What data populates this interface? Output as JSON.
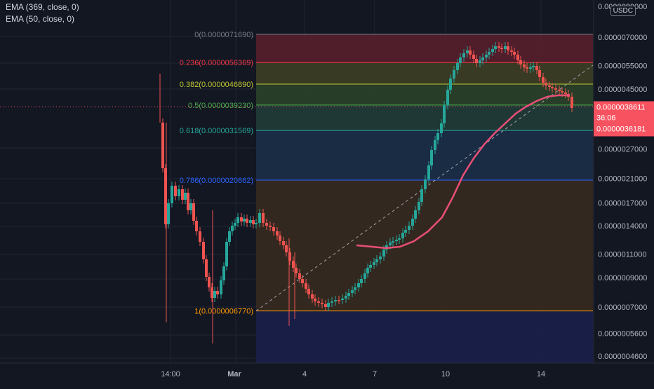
{
  "indicators": [
    {
      "label": "EMA (369, close, 0)"
    },
    {
      "label": "EMA (50, close, 0)"
    }
  ],
  "currency_badge": "USDC",
  "price_axis": {
    "labels": [
      "0.0000070000",
      "0.0000055000",
      "0.0000045000",
      "0.0000027000",
      "0.0000021000",
      "0.0000017000",
      "0.0000014000",
      "0.0000011000",
      "0.0000009000",
      "0.0000007000",
      "0.0000005600",
      "0.0000004600"
    ],
    "top_label": "0.0000080000"
  },
  "time_axis": {
    "labels": [
      "14:00",
      "Mar",
      "4",
      "7",
      "10",
      "14"
    ]
  },
  "price_tag": {
    "price": "0.0000038611",
    "countdown": "36:06",
    "secondary": "0.0000036181",
    "color": "#f7525f"
  },
  "fib_levels": [
    {
      "ratio": "0",
      "price": "0.0000071690",
      "label": "0(0.0000071690)",
      "color": "#787b86"
    },
    {
      "ratio": "0.236",
      "price": "0.0000056369",
      "label": "0.236(0.0000056369)",
      "color": "#f23645"
    },
    {
      "ratio": "0.382",
      "price": "0.0000046890",
      "label": "0.382(0.0000046890)",
      "color": "#c0ca33"
    },
    {
      "ratio": "0.5",
      "price": "0.0000039230",
      "label": "0.5(0.0000039230)",
      "color": "#4caf50"
    },
    {
      "ratio": "0.618",
      "price": "0.0000031569",
      "label": "0.618(0.0000031569)",
      "color": "#26a69a"
    },
    {
      "ratio": "0.786",
      "price": "0.0000020662",
      "label": "0.786(0.0000020662)",
      "color": "#2962ff"
    },
    {
      "ratio": "1",
      "price": "0.0000006770",
      "label": "1(0.0000006770)",
      "color": "#ff9800"
    }
  ],
  "chart_data": {
    "type": "candlestick",
    "title": "",
    "xlabel": "",
    "ylabel": "",
    "y_scale": "log",
    "ylim": [
      4.3e-07,
      8e-06
    ],
    "grid": true,
    "up_color": "#26a69a",
    "down_color": "#ef5350",
    "ema_color": "#e84f77",
    "ema_series": [
      {
        "name": "EMA (50, close, 0)",
        "values": []
      }
    ]
  }
}
